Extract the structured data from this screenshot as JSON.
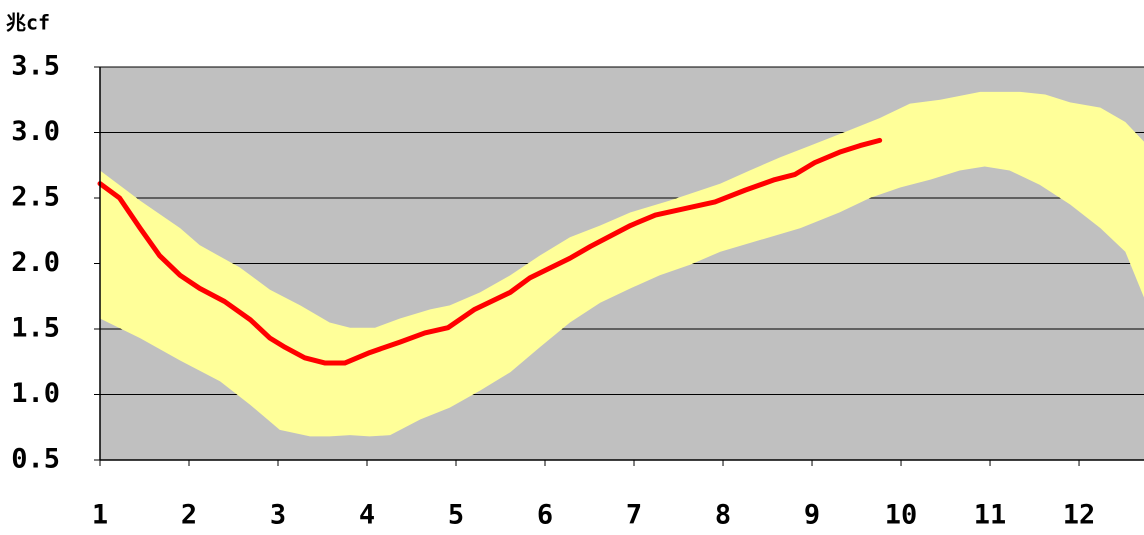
{
  "chart_data": {
    "type": "band-line",
    "y_axis_label": "兆cf",
    "xlim": [
      1,
      12.73
    ],
    "xticks": [
      1,
      2,
      3,
      4,
      5,
      6,
      7,
      8,
      9,
      10,
      11,
      12
    ],
    "ylim": [
      0.5,
      3.5
    ],
    "yticks": [
      0.5,
      {
        "value": 1,
        "label": "1.0"
      },
      1.5,
      {
        "value": 2,
        "label": "2.0"
      },
      2.5,
      {
        "value": 3,
        "label": "3.0"
      },
      3.5
    ],
    "grid": true,
    "plot_background": "#c0c0c0",
    "band": {
      "color": "#ffff99",
      "upper": {
        "x": [
          1.0,
          1.45,
          1.9,
          2.12,
          2.57,
          2.91,
          3.25,
          3.58,
          3.81,
          4.09,
          4.37,
          4.71,
          4.93,
          5.27,
          5.61,
          5.94,
          6.28,
          6.62,
          6.96,
          7.4,
          7.97,
          8.3,
          8.64,
          8.98,
          9.43,
          9.76,
          10.1,
          10.44,
          10.89,
          11.34,
          11.62,
          11.9,
          12.24,
          12.52,
          12.73
        ],
        "values": [
          2.71,
          2.48,
          2.27,
          2.14,
          1.97,
          1.8,
          1.68,
          1.55,
          1.51,
          1.51,
          1.58,
          1.65,
          1.68,
          1.78,
          1.91,
          2.06,
          2.2,
          2.29,
          2.39,
          2.48,
          2.61,
          2.71,
          2.81,
          2.9,
          3.02,
          3.11,
          3.22,
          3.25,
          3.31,
          3.31,
          3.29,
          3.23,
          3.19,
          3.08,
          2.93
        ]
      },
      "lower": {
        "x": [
          1.0,
          1.45,
          1.9,
          2.35,
          2.69,
          3.02,
          3.36,
          3.58,
          3.81,
          4.03,
          4.26,
          4.6,
          4.93,
          5.27,
          5.61,
          5.94,
          6.28,
          6.62,
          6.96,
          7.29,
          7.63,
          7.97,
          8.42,
          8.87,
          9.31,
          9.65,
          9.99,
          10.33,
          10.66,
          10.94,
          11.22,
          11.56,
          11.9,
          12.24,
          12.52,
          12.73
        ],
        "values": [
          1.58,
          1.43,
          1.26,
          1.1,
          0.92,
          0.73,
          0.68,
          0.68,
          0.69,
          0.68,
          0.69,
          0.81,
          0.9,
          1.03,
          1.17,
          1.36,
          1.55,
          1.7,
          1.81,
          1.91,
          1.99,
          2.09,
          2.18,
          2.27,
          2.39,
          2.5,
          2.58,
          2.64,
          2.71,
          2.74,
          2.71,
          2.6,
          2.45,
          2.27,
          2.09,
          1.74
        ]
      }
    },
    "line": {
      "color": "#ff0000",
      "x": [
        1.0,
        1.22,
        1.45,
        1.67,
        1.9,
        2.12,
        2.4,
        2.69,
        2.91,
        3.08,
        3.3,
        3.53,
        3.75,
        4.03,
        4.37,
        4.65,
        4.91,
        5.21,
        5.61,
        5.83,
        6.28,
        6.51,
        6.96,
        7.24,
        7.91,
        8.25,
        8.58,
        8.81,
        9.03,
        9.31,
        9.54,
        9.76
      ],
      "values": [
        2.61,
        2.5,
        2.27,
        2.06,
        1.91,
        1.81,
        1.71,
        1.57,
        1.43,
        1.36,
        1.28,
        1.24,
        1.24,
        1.32,
        1.4,
        1.47,
        1.51,
        1.65,
        1.78,
        1.89,
        2.04,
        2.13,
        2.29,
        2.37,
        2.47,
        2.56,
        2.64,
        2.68,
        2.77,
        2.85,
        2.9,
        2.94
      ]
    }
  }
}
